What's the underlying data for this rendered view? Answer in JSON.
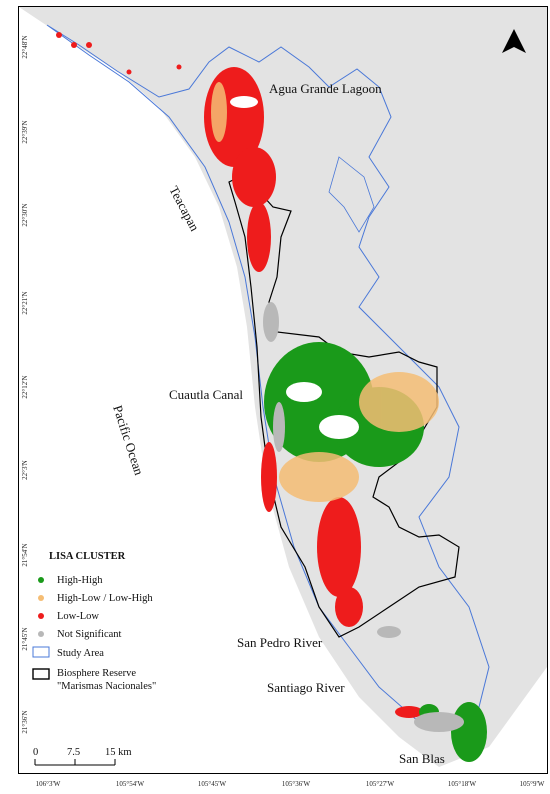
{
  "places": {
    "agua_grande": "Agua Grande Lagoon",
    "teacapan": "Teacapan",
    "cuautla": "Cuautla Canal",
    "pacific": "Pacific Ocean",
    "san_pedro": "San Pedro River",
    "santiago": "Santiago River",
    "san_blas": "San Blas"
  },
  "legend": {
    "title": "LISA CLUSTER",
    "items": [
      {
        "label": "High-High",
        "color": "#1a9a1a",
        "symbol": "dot"
      },
      {
        "label": "High-Low / Low-High",
        "color": "#f5bd74",
        "symbol": "dot"
      },
      {
        "label": "Low-Low",
        "color": "#ee1c1c",
        "symbol": "dot"
      },
      {
        "label": "Not Significant",
        "color": "#b8b8b8",
        "symbol": "dot"
      },
      {
        "label": "Study Area",
        "color": "#4a78d8",
        "symbol": "outline"
      },
      {
        "label": "Biosphere Reserve",
        "label2": "\"Marismas Nacionales\"",
        "color": "#000000",
        "symbol": "outline"
      }
    ]
  },
  "scalebar": {
    "ticks": [
      "0",
      "7.5",
      "15 km"
    ]
  },
  "lat_ticks": [
    "22°48'N",
    "22°39'N",
    "22°30'N",
    "22°21'N",
    "22°12'N",
    "22°3'N",
    "21°54'N",
    "21°45'N",
    "21°36'N"
  ],
  "lon_ticks": [
    "106°3'W",
    "105°54'W",
    "105°45'W",
    "105°36'W",
    "105°27'W",
    "105°18'W",
    "105°9'W"
  ],
  "north_arrow": "north-arrow-icon",
  "colors": {
    "land": "#e3e3e3",
    "sea": "#ffffff",
    "coast": "#4a78d8"
  }
}
